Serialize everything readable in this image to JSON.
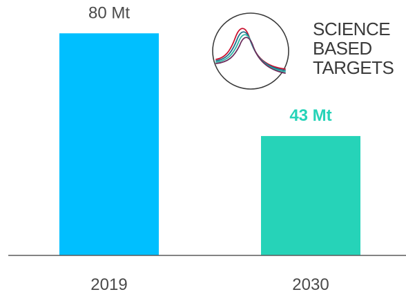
{
  "chart_data": {
    "type": "bar",
    "categories": [
      "2019",
      "2030"
    ],
    "values": [
      80,
      43
    ],
    "value_labels": [
      "80 Mt",
      "43 Mt"
    ],
    "unit": "Mt",
    "title": "",
    "xlabel": "",
    "ylabel": "",
    "ylim": [
      0,
      92
    ],
    "grid": false,
    "legend": "none",
    "colors": [
      "#00BFFF",
      "#26D3B8"
    ],
    "label_colors": [
      "#4A4A4A",
      "#26D3B8"
    ]
  },
  "logo": {
    "name": "science-based-targets-logo",
    "lines": [
      "SCIENCE",
      "BASED",
      "TARGETS"
    ],
    "colors": [
      "#C8102E",
      "#1F6F8B",
      "#2BB3A3",
      "#6B2D5C"
    ]
  }
}
